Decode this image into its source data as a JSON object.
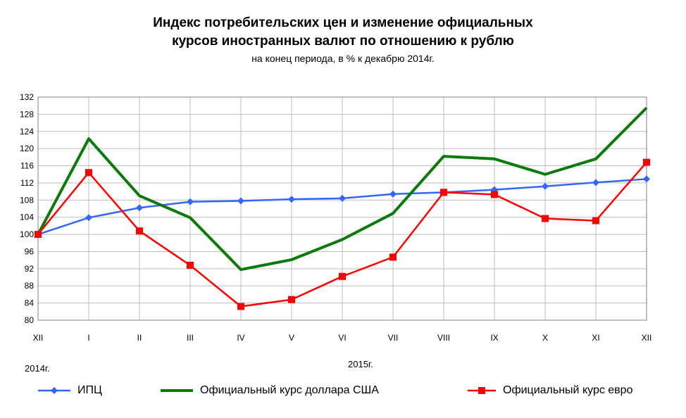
{
  "chart_data": {
    "type": "line",
    "title": "Индекс потребительских цен и изменение официальных\nкурсов иностранных валют по отношению к рублю",
    "subtitle": "на конец периода, в % к декабрю 2014г.",
    "categories": [
      "XII",
      "I",
      "II",
      "III",
      "IV",
      "V",
      "VI",
      "VII",
      "VIII",
      "IX",
      "X",
      "XI",
      "XII"
    ],
    "year_labels": {
      "start": "2014г.",
      "main": "2015г."
    },
    "ylim": [
      80,
      132
    ],
    "yticks": [
      80,
      84,
      88,
      92,
      96,
      100,
      104,
      108,
      112,
      116,
      120,
      124,
      128,
      132
    ],
    "grid": true,
    "legend_position": "bottom",
    "series": [
      {
        "name": "ИПЦ",
        "color": "#3366ff",
        "marker": "diamond",
        "values": [
          100.0,
          103.9,
          106.2,
          107.6,
          107.8,
          108.2,
          108.4,
          109.4,
          109.8,
          110.4,
          111.2,
          112.1,
          112.9
        ]
      },
      {
        "name": "Официальный курс доллара США",
        "color": "#0a7a0a",
        "marker": "none",
        "values": [
          100.0,
          122.3,
          109.0,
          103.9,
          91.8,
          94.1,
          98.8,
          104.9,
          118.2,
          117.6,
          114.0,
          117.6,
          129.5
        ]
      },
      {
        "name": "Официальный курс евро",
        "color": "#ff0000",
        "marker": "square",
        "values": [
          100.0,
          114.4,
          100.8,
          92.8,
          83.2,
          84.8,
          90.2,
          94.7,
          109.8,
          109.3,
          103.7,
          103.2,
          116.8
        ]
      }
    ]
  }
}
